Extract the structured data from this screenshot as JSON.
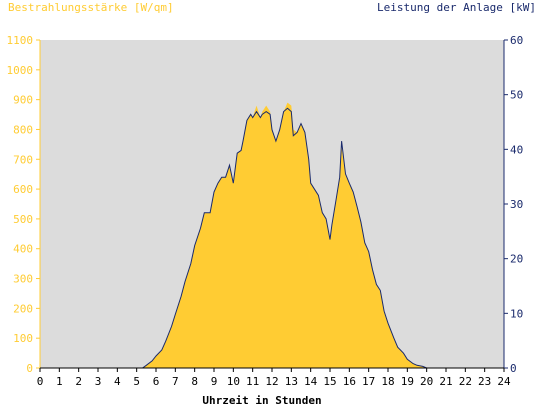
{
  "chart_data": {
    "type": "area",
    "left_axis_title": "Bestrahlungsstärke [W/qm]",
    "right_axis_title": "Leistung der Anlage [kW]",
    "xlabel": "Uhrzeit in Stunden",
    "xlim": [
      0,
      24
    ],
    "x_ticks": [
      "0",
      "1",
      "2",
      "3",
      "4",
      "5",
      "6",
      "7",
      "8",
      "9",
      "10",
      "11",
      "12",
      "13",
      "14",
      "15",
      "16",
      "17",
      "18",
      "19",
      "20",
      "21",
      "22",
      "23",
      "24"
    ],
    "ylim_left": [
      0,
      1100
    ],
    "y_ticks_left": [
      "0",
      "100",
      "200",
      "300",
      "400",
      "500",
      "600",
      "700",
      "800",
      "900",
      "1000",
      "1100"
    ],
    "ylim_right": [
      0,
      60
    ],
    "y_ticks_right": [
      "0",
      "10",
      "20",
      "30",
      "40",
      "50",
      "60"
    ],
    "grid": false,
    "colors": {
      "irradiance_fill": "#ffcc33",
      "power_line": "#1a2a6c",
      "plot_background": "#dcdcdc",
      "left_axis_color": "#ffcc33",
      "right_axis_color": "#1a2a6c"
    },
    "series": [
      {
        "name": "Bestrahlungsstärke [W/qm]",
        "axis": "left",
        "x": [
          0,
          5.3,
          5.5,
          5.8,
          6.0,
          6.3,
          6.5,
          6.8,
          7.0,
          7.3,
          7.5,
          7.8,
          8.0,
          8.3,
          8.5,
          8.8,
          9.0,
          9.2,
          9.4,
          9.6,
          9.8,
          10.0,
          10.2,
          10.4,
          10.5,
          10.7,
          10.9,
          11.0,
          11.2,
          11.4,
          11.5,
          11.7,
          11.9,
          12.0,
          12.2,
          12.4,
          12.6,
          12.8,
          13.0,
          13.1,
          13.3,
          13.5,
          13.7,
          13.9,
          14.0,
          14.2,
          14.4,
          14.6,
          14.8,
          15.0,
          15.1,
          15.3,
          15.5,
          15.6,
          15.8,
          16.0,
          16.2,
          16.4,
          16.6,
          16.8,
          17.0,
          17.2,
          17.4,
          17.6,
          17.8,
          18.0,
          18.3,
          18.5,
          18.8,
          19.0,
          19.3,
          19.5,
          19.8,
          20.0,
          24
        ],
        "y": [
          0,
          0,
          10,
          25,
          40,
          60,
          90,
          140,
          180,
          240,
          290,
          350,
          410,
          470,
          520,
          520,
          590,
          620,
          640,
          640,
          680,
          620,
          720,
          730,
          760,
          830,
          850,
          840,
          880,
          840,
          860,
          880,
          860,
          800,
          760,
          800,
          860,
          890,
          880,
          800,
          790,
          820,
          790,
          700,
          620,
          600,
          580,
          520,
          500,
          430,
          480,
          560,
          640,
          740,
          650,
          620,
          590,
          540,
          490,
          420,
          390,
          330,
          280,
          260,
          190,
          150,
          100,
          70,
          50,
          30,
          15,
          10,
          5,
          0,
          0
        ]
      },
      {
        "name": "Leistung der Anlage [kW]",
        "axis": "right",
        "x": [
          0,
          5.3,
          5.5,
          5.8,
          6.0,
          6.3,
          6.5,
          6.8,
          7.0,
          7.3,
          7.5,
          7.8,
          8.0,
          8.3,
          8.5,
          8.8,
          9.0,
          9.2,
          9.4,
          9.6,
          9.8,
          10.0,
          10.2,
          10.4,
          10.5,
          10.7,
          10.9,
          11.0,
          11.2,
          11.4,
          11.5,
          11.7,
          11.9,
          12.0,
          12.2,
          12.4,
          12.6,
          12.8,
          13.0,
          13.1,
          13.3,
          13.5,
          13.7,
          13.9,
          14.0,
          14.2,
          14.4,
          14.6,
          14.8,
          15.0,
          15.1,
          15.3,
          15.5,
          15.6,
          15.8,
          16.0,
          16.2,
          16.4,
          16.6,
          16.8,
          17.0,
          17.2,
          17.4,
          17.6,
          17.8,
          18.0,
          18.3,
          18.5,
          18.8,
          19.0,
          19.3,
          19.5,
          19.8,
          20.0,
          24
        ],
        "y": [
          0,
          0,
          0.5,
          1.3,
          2.2,
          3.3,
          4.9,
          7.6,
          9.8,
          13.1,
          15.8,
          19.1,
          22.4,
          25.6,
          28.4,
          28.4,
          32.2,
          33.8,
          34.9,
          34.9,
          37.1,
          33.8,
          39.3,
          39.8,
          41.5,
          45.3,
          46.4,
          45.8,
          46.9,
          45.8,
          46.4,
          46.9,
          46.4,
          43.6,
          41.5,
          43.6,
          46.9,
          47.5,
          46.9,
          42.5,
          43.1,
          44.7,
          43.1,
          38.2,
          33.8,
          32.7,
          31.6,
          28.4,
          27.3,
          23.5,
          26.2,
          30.5,
          34.9,
          41.5,
          35.5,
          33.8,
          32.2,
          29.5,
          26.7,
          22.9,
          21.3,
          18.0,
          15.3,
          14.2,
          10.4,
          8.2,
          5.5,
          3.8,
          2.7,
          1.6,
          0.8,
          0.5,
          0.3,
          0,
          0
        ]
      }
    ]
  }
}
